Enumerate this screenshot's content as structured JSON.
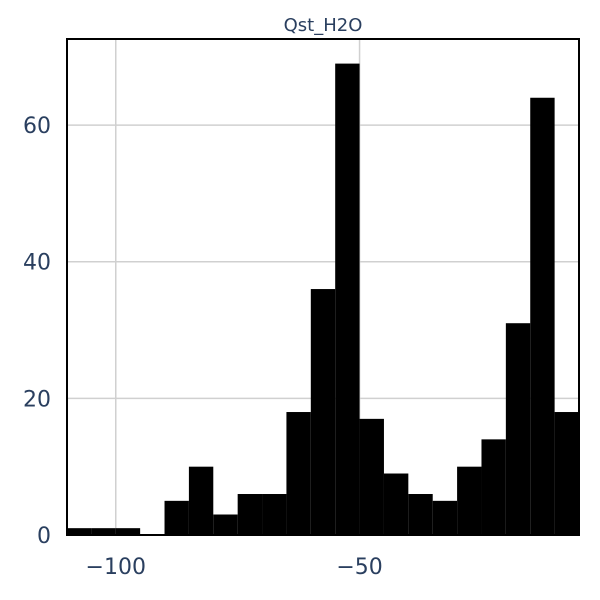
{
  "chart_data": {
    "type": "bar",
    "title": "Qst_H2O",
    "xlabel": "",
    "ylabel": "",
    "bin_edges": [
      -110,
      -105,
      -100,
      -95,
      -90,
      -85,
      -80,
      -75,
      -70,
      -65,
      -60,
      -55,
      -50,
      -45,
      -40,
      -35,
      -30,
      -25,
      -20,
      -15,
      -10,
      -5
    ],
    "values": [
      1,
      1,
      1,
      0,
      5,
      10,
      3,
      6,
      6,
      18,
      36,
      69,
      17,
      9,
      6,
      5,
      10,
      14,
      31,
      64,
      18
    ],
    "xlim": [
      -110,
      -5
    ],
    "ylim": [
      0,
      72.6
    ],
    "xticks": [
      -100,
      -50
    ],
    "xtick_labels": [
      "−100",
      "−50"
    ],
    "yticks": [
      0,
      20,
      40,
      60
    ],
    "ytick_labels": [
      "0",
      "20",
      "40",
      "60"
    ],
    "bar_color": "#000000",
    "grid": true,
    "legend": false
  }
}
